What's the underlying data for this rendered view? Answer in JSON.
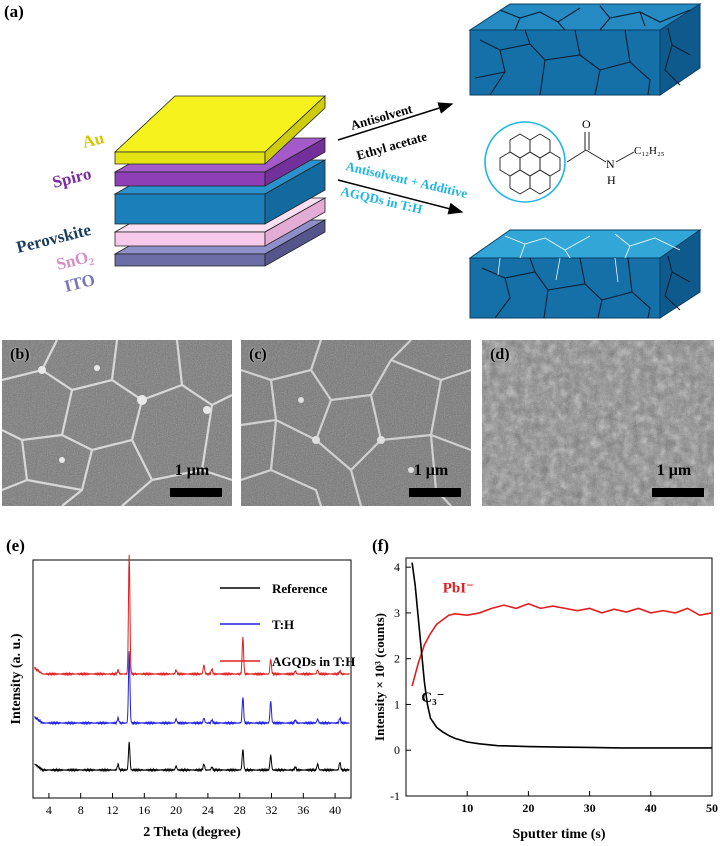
{
  "panel_a": {
    "label": "(a)",
    "layers": [
      "Au",
      "Spiro",
      "Perovskite",
      "SnO₂",
      "ITO"
    ],
    "arrow_top_line1": "Antisolvent",
    "arrow_top_line2": "Ethyl acetate",
    "arrow_bottom_line1": "Antisolvent + Additive",
    "arrow_bottom_line2": "AGQDs in T:H",
    "molecule_sub": "C₁₂H₂₅",
    "molecule_n": "N",
    "molecule_h": "H",
    "molecule_o": "O",
    "colors": {
      "au": "#f5f21e",
      "spiro": "#8e3fb6",
      "perovskite": "#1b7fb9",
      "sno2": "#f7c9ea",
      "ito": "#6c6ca6",
      "film_top": "#1d7db4",
      "film_side": "#0d5d94",
      "treated_top": "#2a9ed2",
      "cyan_text": "#1fb6e6"
    }
  },
  "sem_b": {
    "label": "(b)",
    "scale": "1 μm"
  },
  "sem_c": {
    "label": "(c)",
    "scale": "1 μm"
  },
  "sem_d": {
    "label": "(d)",
    "scale": "1 μm"
  },
  "chart_e": {
    "label": "(e)",
    "chart_data": {
      "type": "line",
      "xlabel": "2 Theta (degree)",
      "ylabel": "Intensity (a. u.)",
      "xlim": [
        2,
        42
      ],
      "xticks": [
        4,
        8,
        12,
        16,
        20,
        24,
        28,
        32,
        36,
        40
      ],
      "legend_placement": "top-right",
      "series": [
        {
          "name": "Reference",
          "color": "#000000",
          "offset": 0,
          "peaks": [
            [
              12.7,
              6
            ],
            [
              14.1,
              28
            ],
            [
              20.0,
              4
            ],
            [
              23.5,
              6
            ],
            [
              24.5,
              3
            ],
            [
              28.4,
              21
            ],
            [
              31.9,
              15
            ],
            [
              35.0,
              3
            ],
            [
              37.8,
              6
            ],
            [
              40.6,
              8
            ]
          ]
        },
        {
          "name": "T:H",
          "color": "#1f1fe0",
          "offset": 1,
          "peaks": [
            [
              12.7,
              5
            ],
            [
              14.1,
              72
            ],
            [
              20.0,
              4
            ],
            [
              23.5,
              5
            ],
            [
              24.5,
              3
            ],
            [
              28.4,
              26
            ],
            [
              31.9,
              22
            ],
            [
              35.0,
              3
            ],
            [
              37.8,
              4
            ],
            [
              40.6,
              5
            ]
          ]
        },
        {
          "name": "AGQDs in T:H",
          "color": "#e01f1f",
          "offset": 2,
          "peaks": [
            [
              12.7,
              4
            ],
            [
              14.1,
              120
            ],
            [
              20.0,
              4
            ],
            [
              23.5,
              9
            ],
            [
              24.5,
              5
            ],
            [
              28.4,
              37
            ],
            [
              31.9,
              15
            ],
            [
              35.0,
              3
            ],
            [
              37.8,
              4
            ],
            [
              40.6,
              3
            ]
          ]
        }
      ]
    }
  },
  "chart_f": {
    "label": "(f)",
    "chart_data": {
      "type": "line",
      "xlabel": "Sputter time (s)",
      "ylabel": "Intensity × 10³ (counts)",
      "xlim": [
        0,
        50
      ],
      "ylim": [
        -1,
        4.2
      ],
      "xticks": [
        10,
        20,
        30,
        40,
        50
      ],
      "yticks": [
        -1,
        0,
        1,
        2,
        3,
        4
      ],
      "series": [
        {
          "name": "PbI⁻",
          "color": "#e01f1f",
          "x": [
            1,
            2,
            3,
            4,
            5,
            6,
            7,
            8,
            10,
            12,
            14,
            16,
            18,
            20,
            22,
            24,
            26,
            28,
            30,
            32,
            34,
            36,
            38,
            40,
            42,
            44,
            46,
            48,
            50
          ],
          "y": [
            1.4,
            1.9,
            2.3,
            2.55,
            2.75,
            2.85,
            2.95,
            2.98,
            2.95,
            3.0,
            3.1,
            3.17,
            3.1,
            3.2,
            3.1,
            3.15,
            3.1,
            3.05,
            3.1,
            3.0,
            3.08,
            3.02,
            3.1,
            3.0,
            3.05,
            3.0,
            3.1,
            2.95,
            3.0
          ]
        },
        {
          "name": "C₃⁻",
          "color": "#000000",
          "x": [
            1,
            1.5,
            2,
            2.5,
            3,
            3.5,
            4,
            5,
            6,
            7,
            8,
            10,
            12,
            15,
            20,
            25,
            30,
            35,
            40,
            45,
            50
          ],
          "y": [
            4.1,
            3.6,
            2.9,
            2.2,
            1.5,
            1.0,
            0.7,
            0.5,
            0.4,
            0.32,
            0.26,
            0.18,
            0.14,
            0.1,
            0.08,
            0.07,
            0.06,
            0.05,
            0.05,
            0.05,
            0.05
          ]
        }
      ]
    }
  }
}
